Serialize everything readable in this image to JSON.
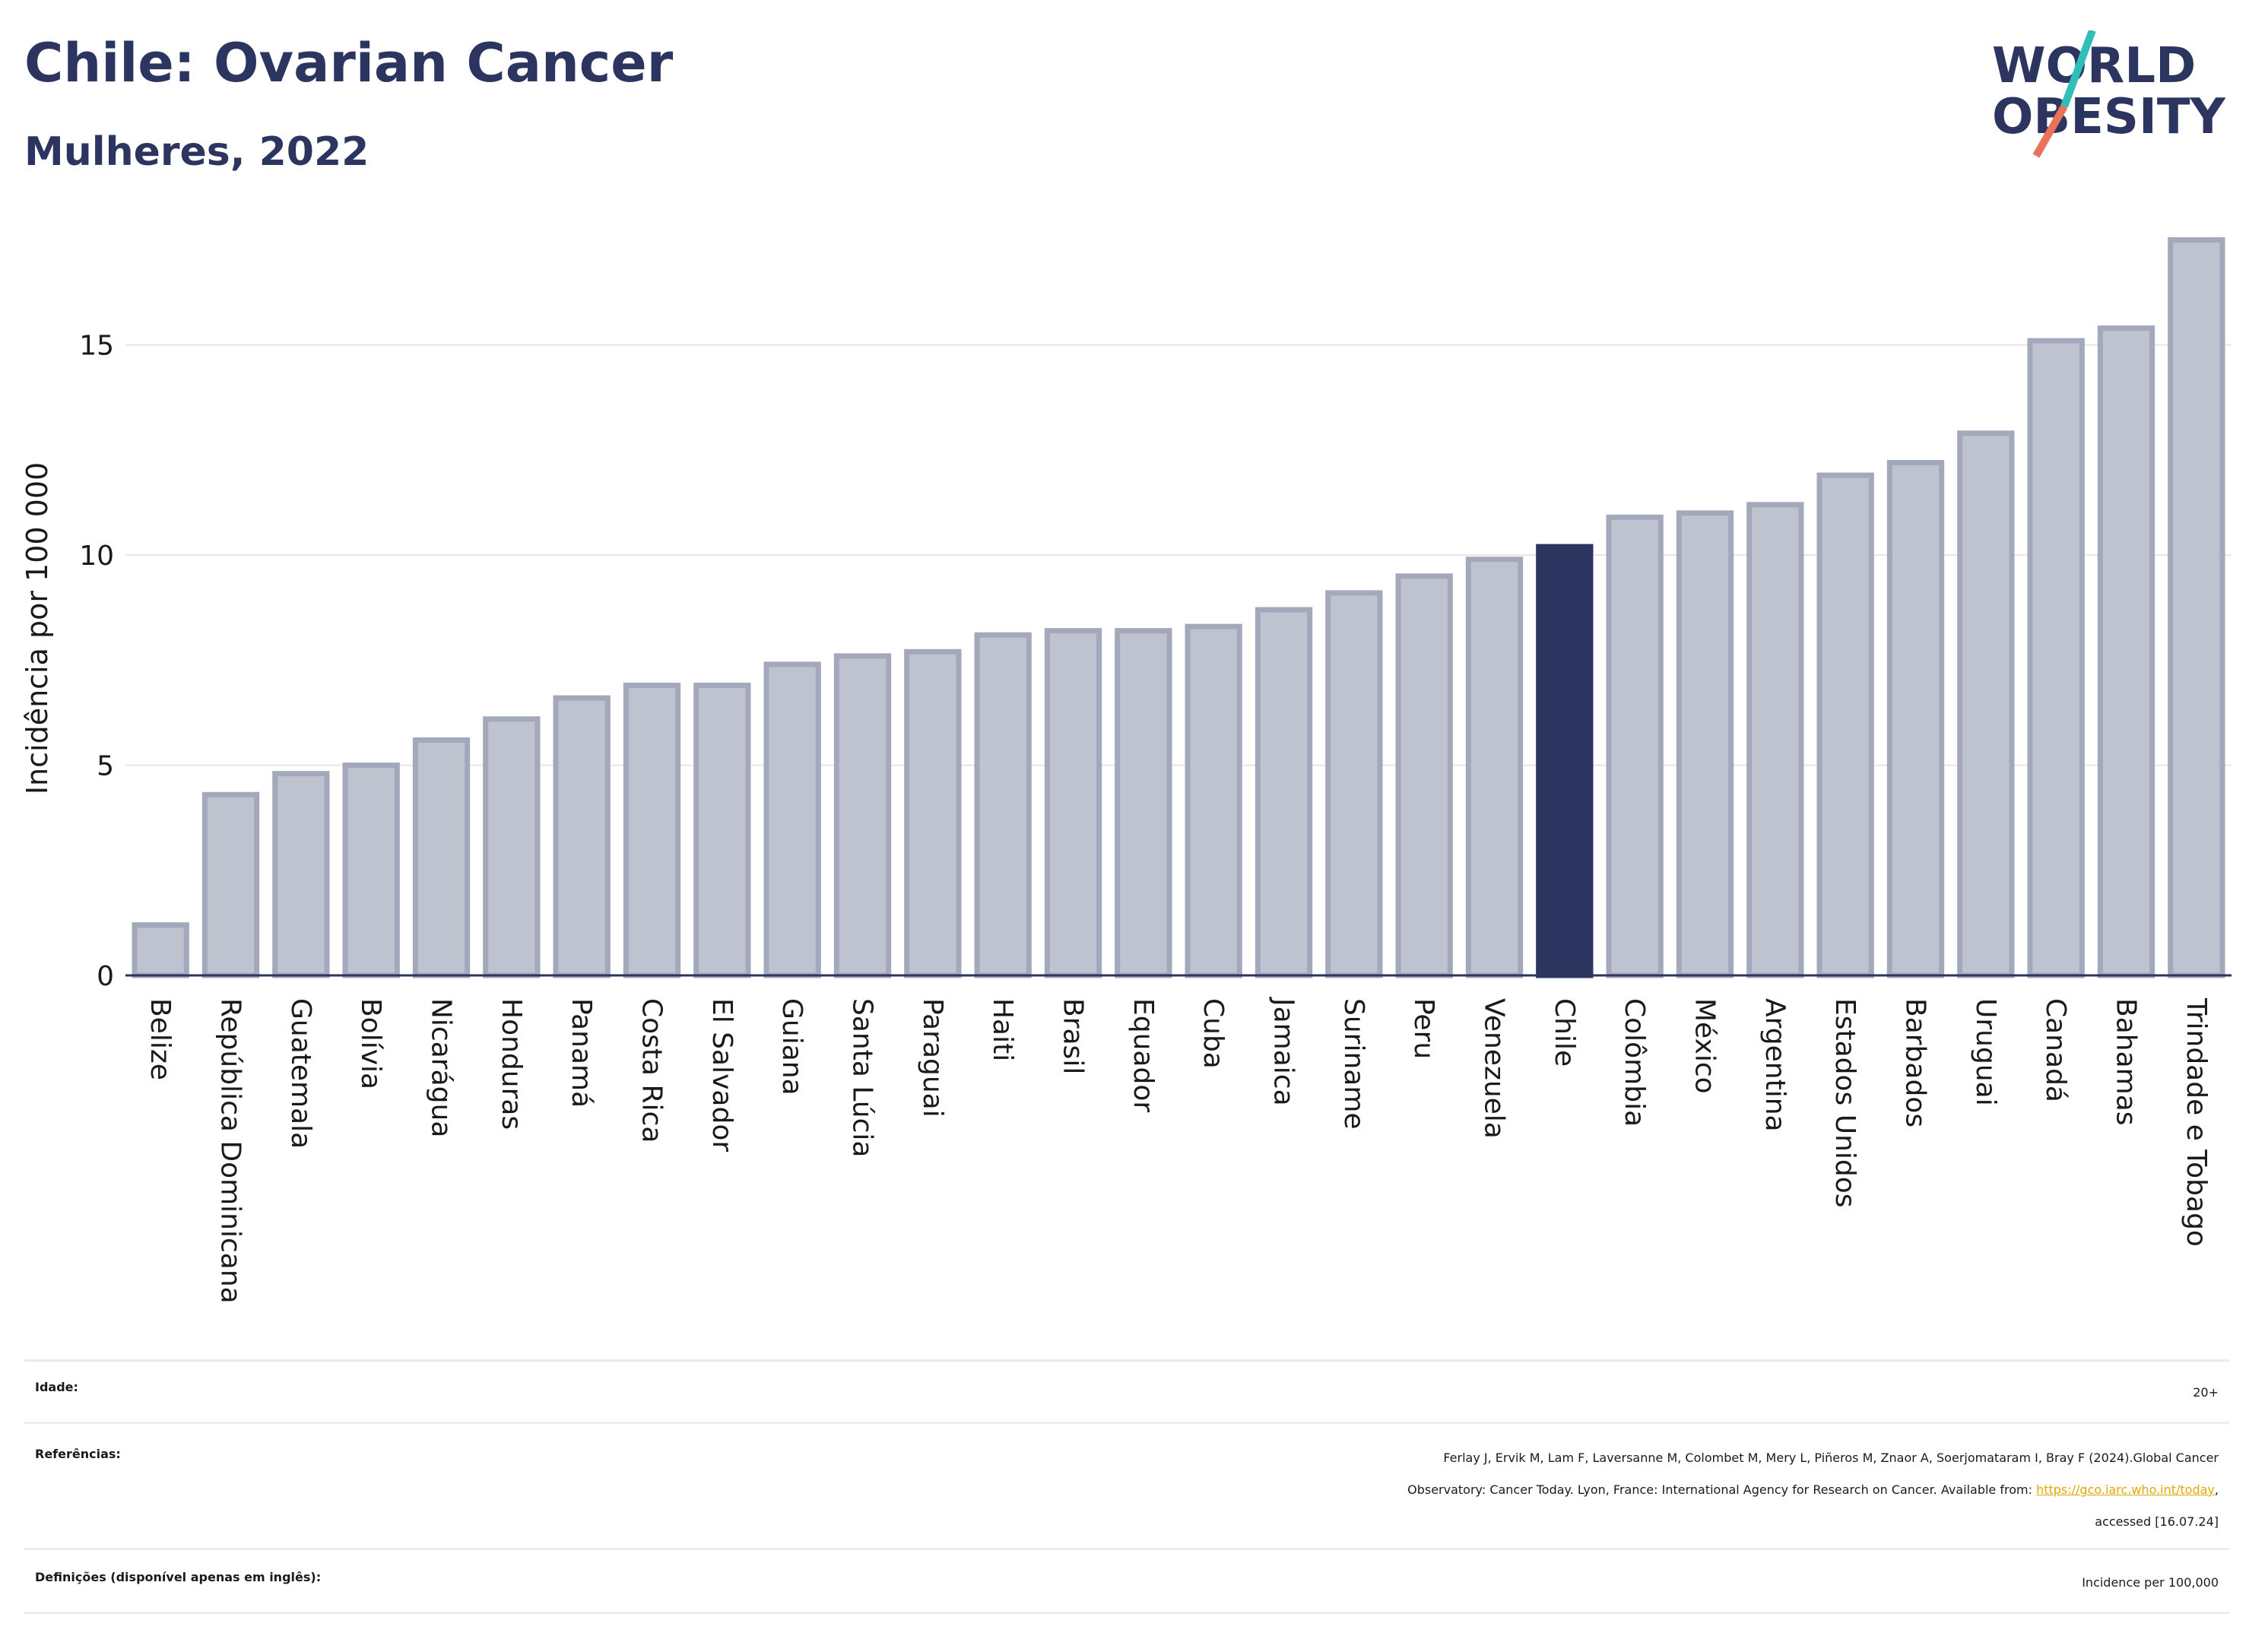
{
  "header": {
    "title": "Chile: Ovarian Cancer",
    "subtitle": "Mulheres, 2022"
  },
  "logo": {
    "line1": "WORLD",
    "line2": "OBESITY",
    "colors": {
      "text": "#2b3560",
      "slash_teal": "#2fbfb8",
      "slash_coral": "#e8735a"
    }
  },
  "chart_data": {
    "type": "bar",
    "ylabel": "Incidência por 100 000",
    "ylim": [
      0,
      17.6
    ],
    "yticks": [
      0,
      5,
      10,
      15
    ],
    "grid": true,
    "highlight": "Chile",
    "colors": {
      "bar": "#bfc2cf",
      "bar_edge": "#a3a8bb",
      "highlight": "#2b3560"
    },
    "categories": [
      "Belize",
      "República Dominicana",
      "Guatemala",
      "Bolívia",
      "Nicarágua",
      "Honduras",
      "Panamá",
      "Costa Rica",
      "El Salvador",
      "Guiana",
      "Santa Lúcia",
      "Paraguai",
      "Haiti",
      "Brasil",
      "Equador",
      "Cuba",
      "Jamaica",
      "Suriname",
      "Peru",
      "Venezuela",
      "Chile",
      "Colômbia",
      "México",
      "Argentina",
      "Estados Unidos",
      "Barbados",
      "Uruguai",
      "Canadá",
      "Bahamas",
      "Trindade e Tobago"
    ],
    "values": [
      1.2,
      4.3,
      4.8,
      5.0,
      5.6,
      6.1,
      6.6,
      6.9,
      6.9,
      7.4,
      7.6,
      7.7,
      8.1,
      8.2,
      8.2,
      8.3,
      8.7,
      9.1,
      9.5,
      9.9,
      10.2,
      10.9,
      11.0,
      11.2,
      11.9,
      12.2,
      12.9,
      15.1,
      15.4,
      17.5
    ]
  },
  "info": {
    "age_label": "Idade:",
    "age_value": "20+",
    "refs_label": "Referências:",
    "refs_line1": "Ferlay J, Ervik M, Lam F, Laversanne M, Colombet M, Mery L, Piñeros M, Znaor A, Soerjomataram I, Bray F (2024).Global Cancer",
    "refs_line2_pre": "Observatory: Cancer Today. Lyon, France: International Agency for Research on Cancer. Available from: ",
    "refs_link": "https://gco.iarc.who.int/today",
    "refs_line2_post": ",",
    "refs_line3": "accessed [16.07.24]",
    "defs_label": "Definições (disponível apenas em inglês):",
    "defs_value": "Incidence per 100,000"
  }
}
